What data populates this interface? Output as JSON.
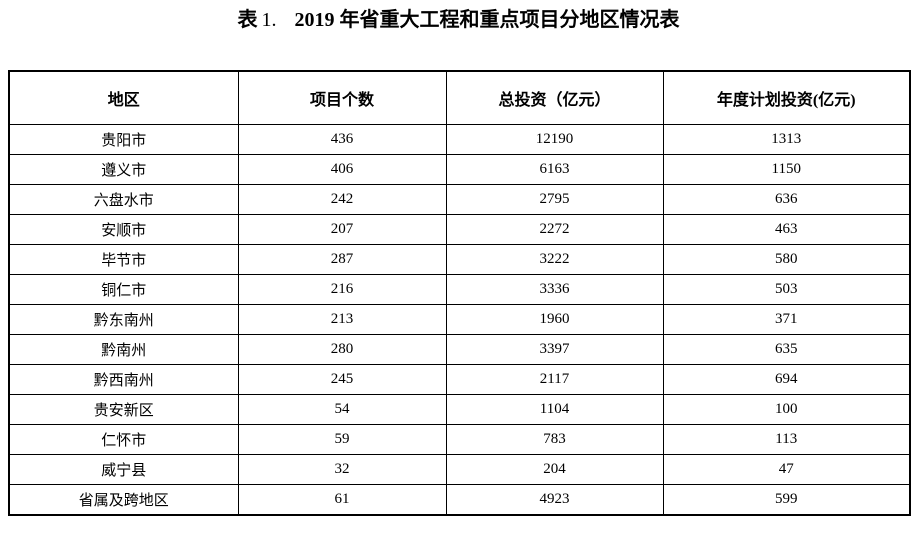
{
  "title": {
    "label": "表",
    "number": "1.",
    "text": "2019 年省重大工程和重点项目分地区情况表"
  },
  "table": {
    "headers": [
      "地区",
      "项目个数",
      "总投资（亿元）",
      "年度计划投资(亿元)"
    ],
    "rows": [
      [
        "贵阳市",
        "436",
        "12190",
        "1313"
      ],
      [
        "遵义市",
        "406",
        "6163",
        "1150"
      ],
      [
        "六盘水市",
        "242",
        "2795",
        "636"
      ],
      [
        "安顺市",
        "207",
        "2272",
        "463"
      ],
      [
        "毕节市",
        "287",
        "3222",
        "580"
      ],
      [
        "铜仁市",
        "216",
        "3336",
        "503"
      ],
      [
        "黔东南州",
        "213",
        "1960",
        "371"
      ],
      [
        "黔南州",
        "280",
        "3397",
        "635"
      ],
      [
        "黔西南州",
        "245",
        "2117",
        "694"
      ],
      [
        "贵安新区",
        "54",
        "1104",
        "100"
      ],
      [
        "仁怀市",
        "59",
        "783",
        "113"
      ],
      [
        "威宁县",
        "32",
        "204",
        "47"
      ],
      [
        "省属及跨地区",
        "61",
        "4923",
        "599"
      ]
    ]
  },
  "colors": {
    "text": "#000000",
    "border": "#000000",
    "background": "#ffffff"
  }
}
